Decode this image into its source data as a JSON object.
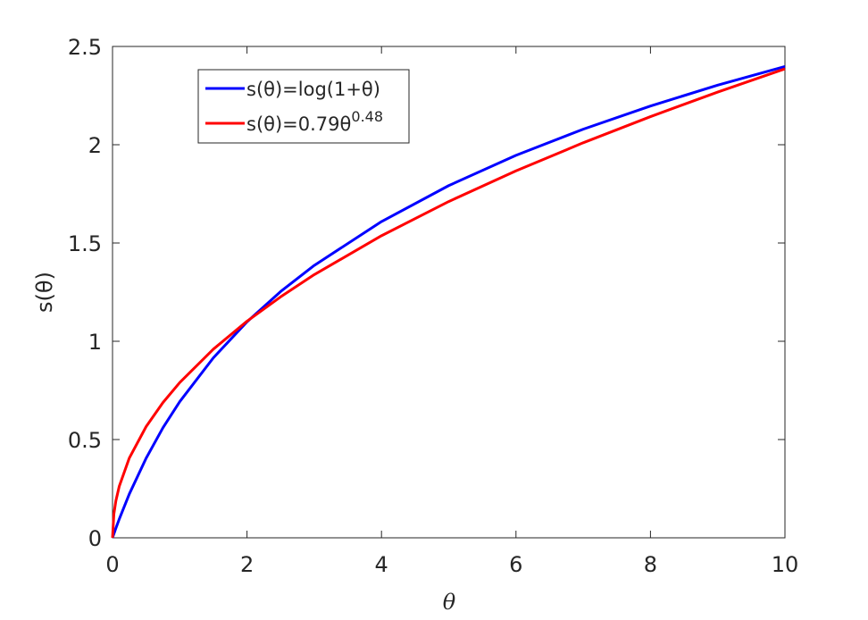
{
  "chart_data": {
    "type": "line",
    "xlabel": "θ",
    "ylabel": "s(θ)",
    "x": [
      0,
      0.02,
      0.05,
      0.1,
      0.25,
      0.5,
      0.75,
      1,
      1.5,
      2,
      2.5,
      3,
      4,
      5,
      6,
      7,
      8,
      9,
      10
    ],
    "series": [
      {
        "name": "s(θ)=log(1+θ)",
        "color": "#0000ff",
        "values": [
          0,
          0.02,
          0.049,
          0.095,
          0.223,
          0.405,
          0.56,
          0.693,
          0.916,
          1.099,
          1.253,
          1.386,
          1.609,
          1.792,
          1.946,
          2.079,
          2.197,
          2.303,
          2.398
        ]
      },
      {
        "name": "s(θ)=0.79θ",
        "name_superscript": "0.48",
        "color": "#ff0000",
        "values": [
          0,
          0.121,
          0.188,
          0.262,
          0.406,
          0.566,
          0.688,
          0.79,
          0.96,
          1.102,
          1.226,
          1.339,
          1.537,
          1.711,
          1.867,
          2.01,
          2.143,
          2.268,
          2.386
        ]
      }
    ],
    "xlim": [
      0,
      10
    ],
    "xticks": [
      0,
      2,
      4,
      6,
      8,
      10
    ],
    "ylim": [
      0,
      2.5
    ],
    "yticks": [
      0,
      0.5,
      1,
      1.5,
      2,
      2.5
    ],
    "legend": "upper-left",
    "grid": false
  }
}
